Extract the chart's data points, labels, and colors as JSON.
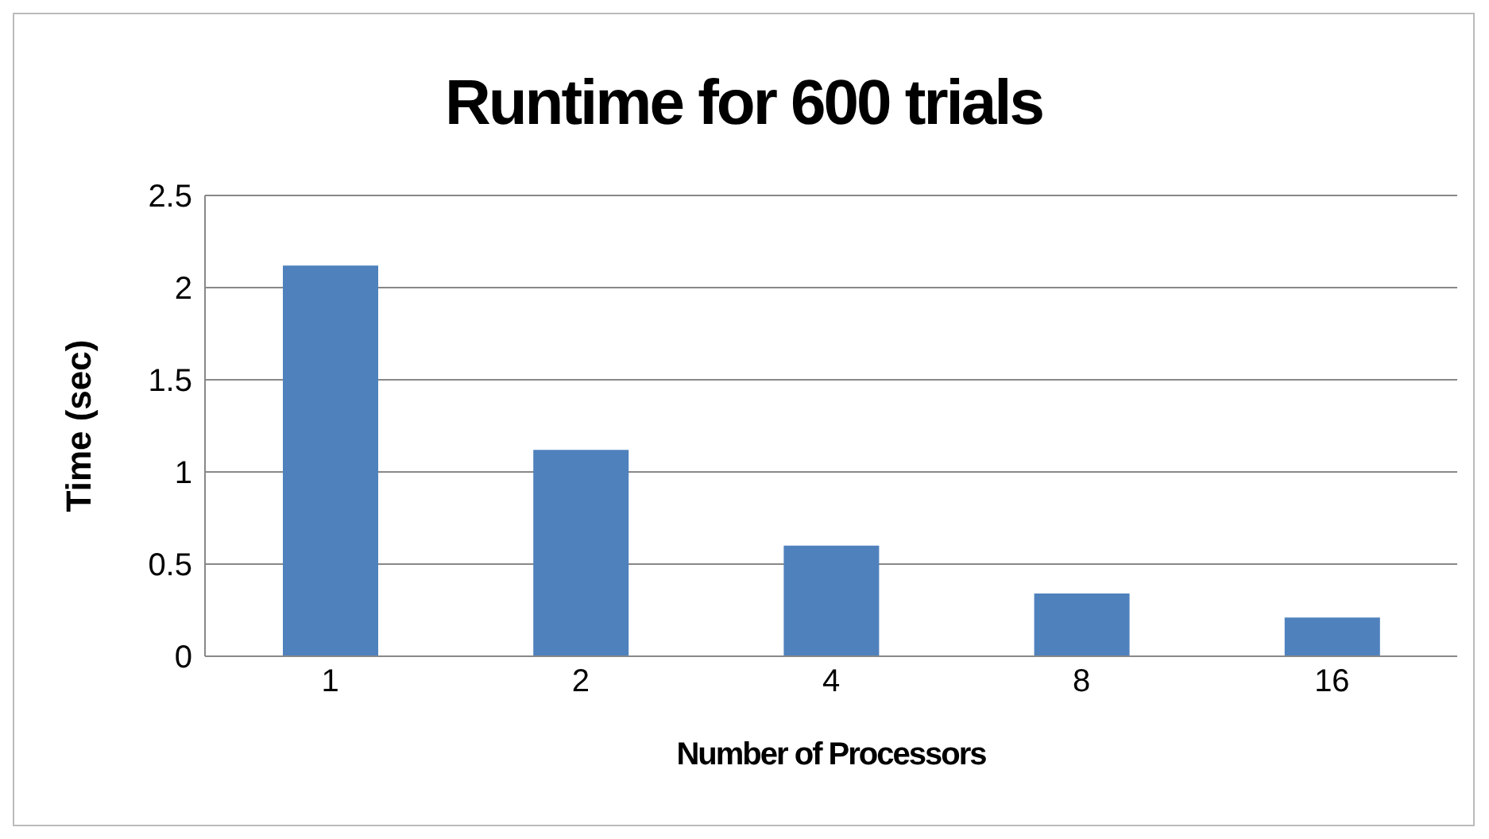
{
  "chart_data": {
    "type": "bar",
    "title": "Runtime for 600 trials",
    "xlabel": "Number of Processors",
    "ylabel": "Time (sec)",
    "categories": [
      "1",
      "2",
      "4",
      "8",
      "16"
    ],
    "values": [
      2.12,
      1.12,
      0.6,
      0.34,
      0.21
    ],
    "color": "#4f81bd",
    "ylim": [
      0,
      2.5
    ],
    "yticks": [
      0,
      0.5,
      1,
      1.5,
      2,
      2.5
    ],
    "grid": "y"
  }
}
